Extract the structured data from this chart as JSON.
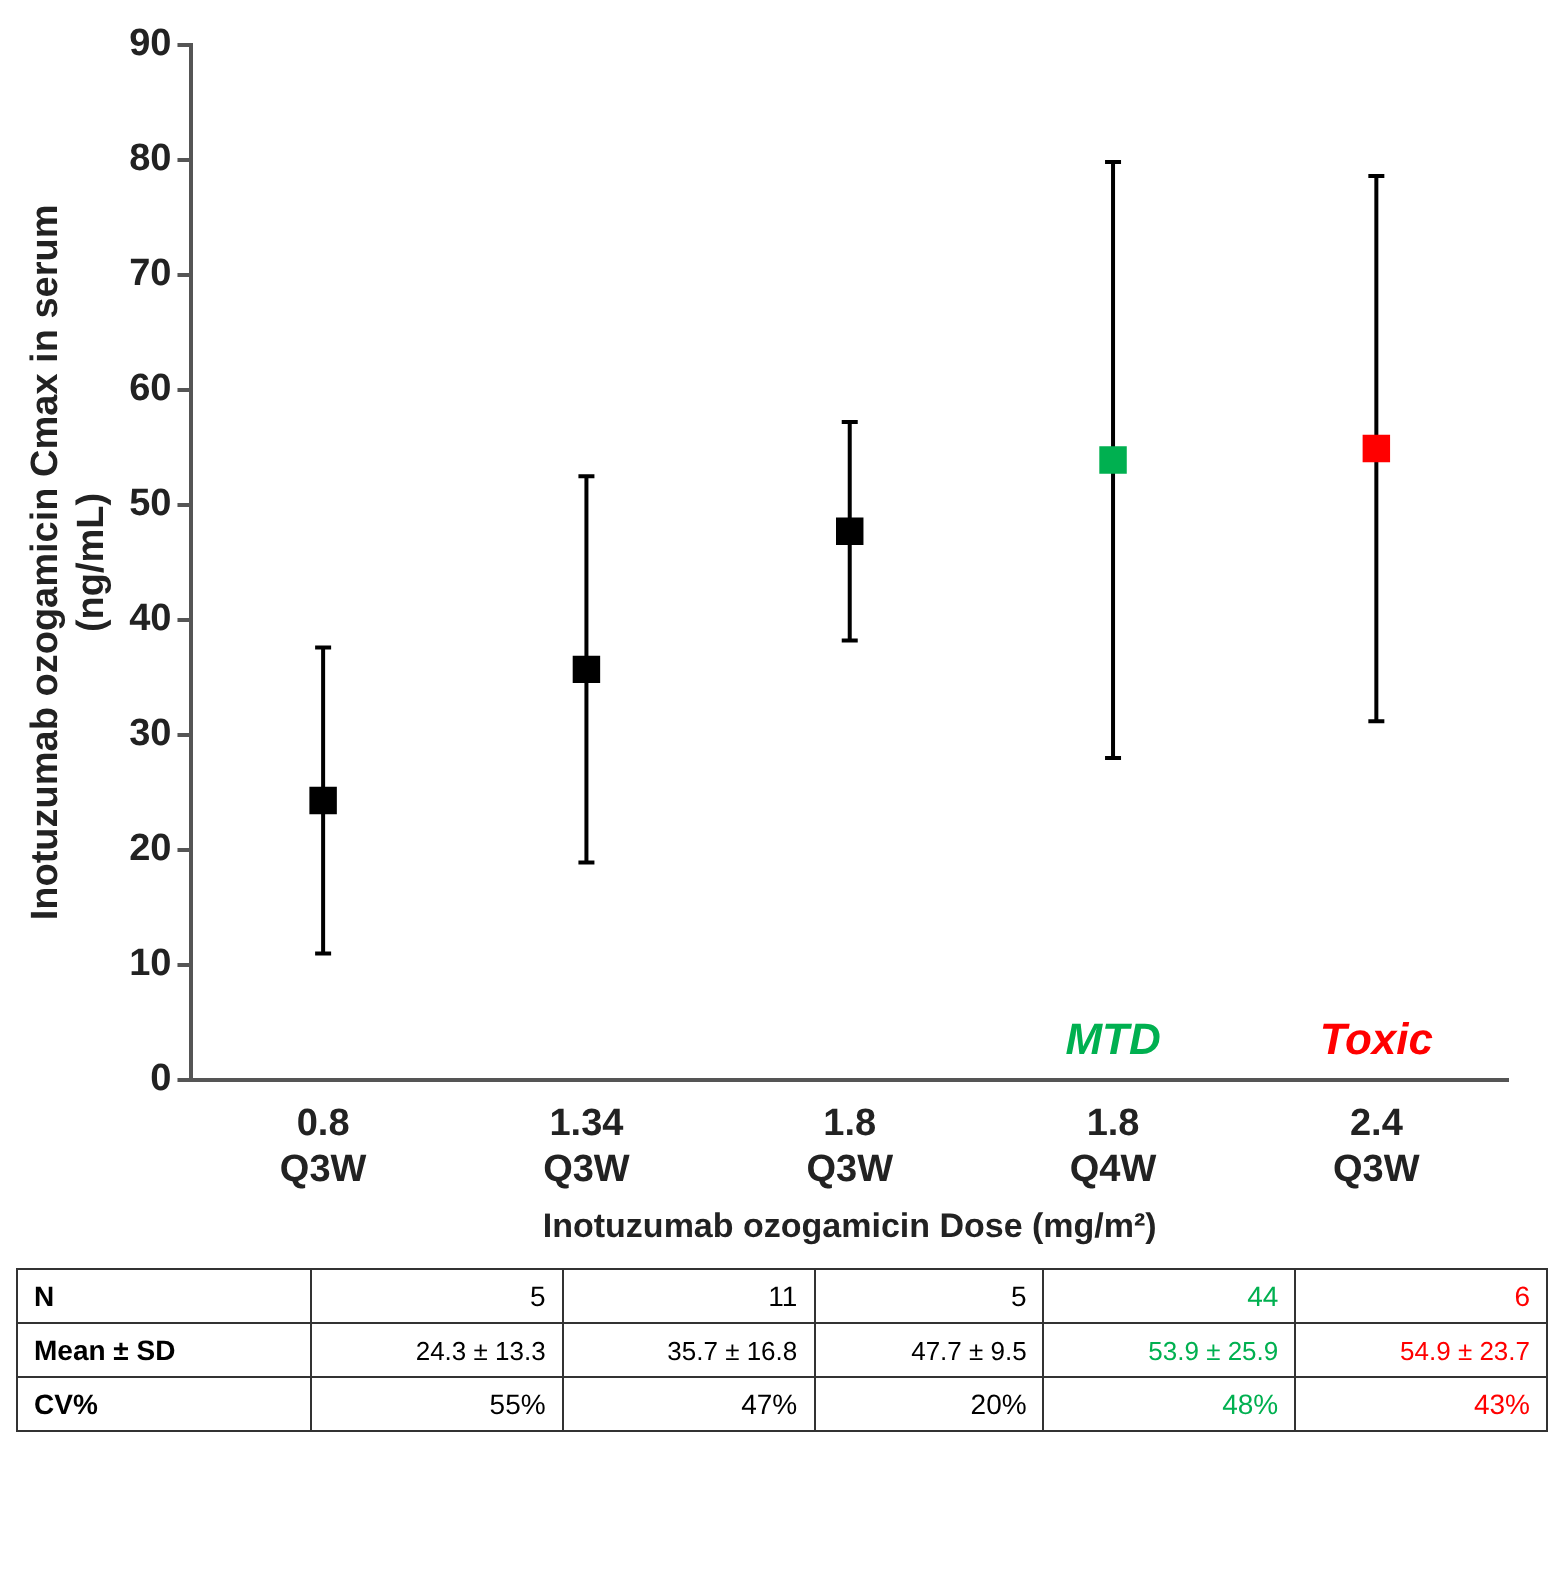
{
  "chart_data": {
    "type": "scatter",
    "categories": [
      "0.8\nQ3W",
      "1.34\nQ3W",
      "1.8\nQ3W",
      "1.8\nQ4W",
      "2.4\nQ3W"
    ],
    "values": [
      24.3,
      35.7,
      47.7,
      53.9,
      54.9
    ],
    "errors": [
      13.3,
      16.8,
      9.5,
      25.9,
      23.7
    ],
    "colors": [
      "#000000",
      "#000000",
      "#000000",
      "#00b050",
      "#ff0000"
    ],
    "ylabel": "Inotuzumab ozogamicin Cmax in serum\n(ng/mL)",
    "xlabel": "Inotuzumab ozogamicin Dose (mg/m²)",
    "ylim": [
      0,
      90
    ],
    "yticks": [
      0,
      10,
      20,
      30,
      40,
      50,
      60,
      70,
      80,
      90
    ],
    "legend": false,
    "grid": false,
    "marker": "square",
    "annotations": [
      "MTD",
      "Toxic",
      "N",
      "5",
      "11",
      "5",
      "44",
      "6",
      "Mean ± SD",
      "24.3 ± 13.3",
      "35.7 ± 16.8",
      "47.7 ± 9.5",
      "53.9 ± 25.9",
      "54.9 ± 23.7",
      "CV%",
      "55%",
      "47%",
      "20%",
      "48%",
      "43%"
    ]
  }
}
